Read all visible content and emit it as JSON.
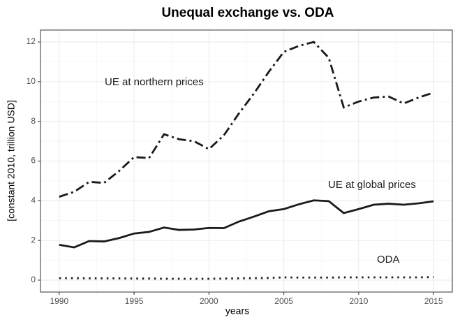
{
  "chart_data": {
    "type": "line",
    "title": "Unequal exchange vs. ODA",
    "x_label": "years",
    "y_label": "[constant 2010, trillion USD]",
    "x": [
      1990,
      1991,
      1992,
      1993,
      1994,
      1995,
      1996,
      1997,
      1998,
      1999,
      2000,
      2001,
      2002,
      2003,
      2004,
      2005,
      2006,
      2007,
      2008,
      2009,
      2010,
      2011,
      2012,
      2013,
      2014,
      2015
    ],
    "series": [
      {
        "name": "UE at northern prices",
        "color": "#1a1a1a",
        "dash": "dashdot",
        "values": [
          4.2,
          4.45,
          4.95,
          4.9,
          5.5,
          6.2,
          6.15,
          7.35,
          7.1,
          7.0,
          6.6,
          7.3,
          8.4,
          9.4,
          10.5,
          11.5,
          11.8,
          12.0,
          11.2,
          8.7,
          9.0,
          9.2,
          9.25,
          8.9,
          9.2,
          9.45
        ]
      },
      {
        "name": "UE at global prices",
        "color": "#1a1a1a",
        "dash": "solid",
        "values": [
          1.78,
          1.65,
          1.97,
          1.95,
          2.12,
          2.35,
          2.43,
          2.65,
          2.53,
          2.55,
          2.63,
          2.62,
          2.95,
          3.2,
          3.47,
          3.58,
          3.82,
          4.02,
          3.98,
          3.38,
          3.58,
          3.8,
          3.85,
          3.8,
          3.87,
          3.97
        ]
      },
      {
        "name": "ODA",
        "color": "#1a1a1a",
        "dash": "dotted",
        "values": [
          0.1,
          0.1,
          0.09,
          0.09,
          0.09,
          0.08,
          0.08,
          0.07,
          0.07,
          0.07,
          0.07,
          0.08,
          0.09,
          0.1,
          0.11,
          0.14,
          0.13,
          0.13,
          0.13,
          0.14,
          0.14,
          0.14,
          0.14,
          0.14,
          0.14,
          0.15
        ]
      }
    ],
    "xlim": [
      1988.75,
      2016.25
    ],
    "xticks": [
      1990,
      1995,
      2000,
      2005,
      2010,
      2015
    ],
    "ylim": [
      -0.6,
      12.6
    ],
    "yticks": [
      0,
      2,
      4,
      6,
      8,
      10,
      12
    ],
    "grid": true
  }
}
